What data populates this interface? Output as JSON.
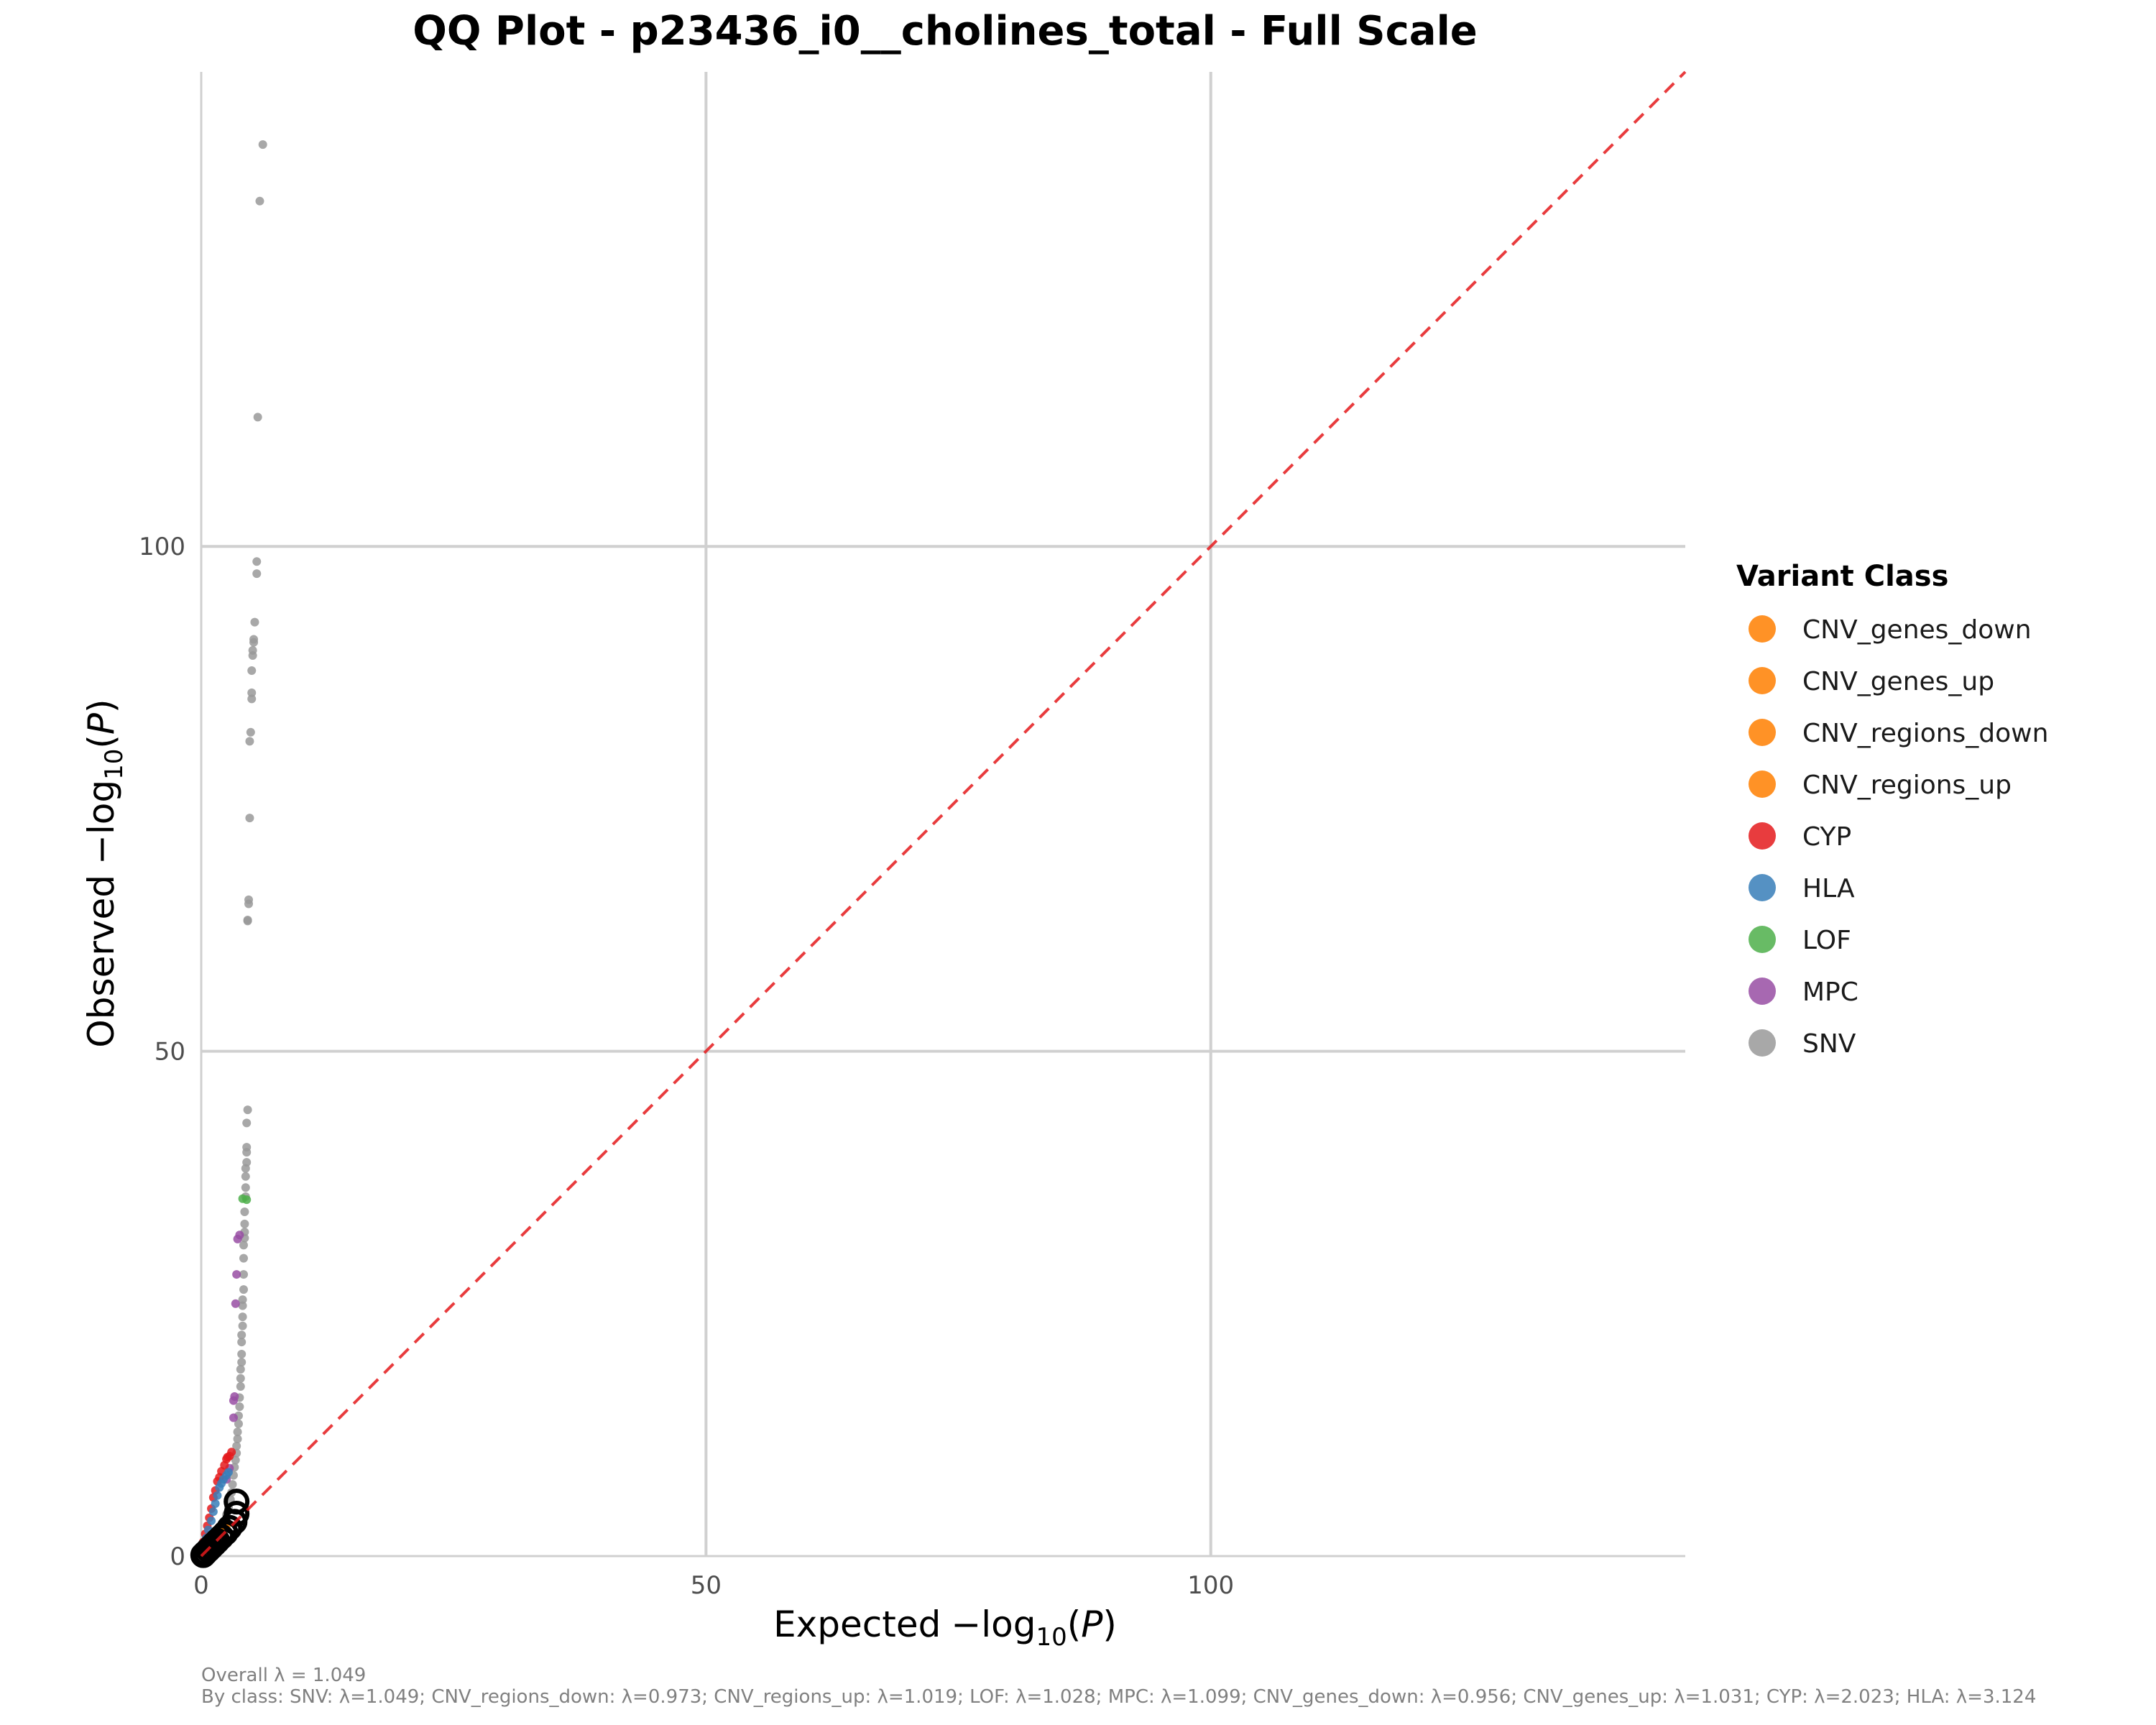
{
  "chart_data": {
    "type": "scatter",
    "title": "QQ Plot - p23436_i0__cholines_total - Full Scale",
    "xlabel_prefix": "Expected",
    "ylabel_prefix": "Observed",
    "xlim": [
      0,
      147
    ],
    "ylim": [
      0,
      147
    ],
    "x_ticks": [
      0,
      50,
      100
    ],
    "y_ticks": [
      0,
      50,
      100
    ],
    "grid": true,
    "reference_line": {
      "type": "diagonal",
      "color": "#e41a1c",
      "style": "dashed"
    },
    "legend": {
      "title": "Variant Class",
      "placement": "right",
      "entries": [
        {
          "name": "CNV_genes_down",
          "color": "#ff7f00"
        },
        {
          "name": "CNV_genes_up",
          "color": "#ff7f00"
        },
        {
          "name": "CNV_regions_down",
          "color": "#ff7f00"
        },
        {
          "name": "CNV_regions_up",
          "color": "#ff7f00"
        },
        {
          "name": "CYP",
          "color": "#e41a1c"
        },
        {
          "name": "HLA",
          "color": "#377eb8"
        },
        {
          "name": "LOF",
          "color": "#4daf4a"
        },
        {
          "name": "MPC",
          "color": "#984ea3"
        },
        {
          "name": "SNV",
          "color": "#999999"
        }
      ]
    },
    "series": [
      {
        "class": "SNV",
        "color": "#999999",
        "points": [
          [
            6.1,
            139.8
          ],
          [
            5.8,
            134.2
          ],
          [
            5.6,
            112.8
          ],
          [
            5.5,
            98.5
          ],
          [
            5.5,
            97.3
          ],
          [
            5.3,
            92.5
          ],
          [
            5.2,
            90.8
          ],
          [
            5.2,
            90.5
          ],
          [
            5.1,
            89.7
          ],
          [
            5.1,
            89.2
          ],
          [
            5.0,
            87.7
          ],
          [
            5.0,
            85.5
          ],
          [
            5.0,
            84.9
          ],
          [
            4.9,
            81.6
          ],
          [
            4.8,
            80.7
          ],
          [
            4.8,
            73.1
          ],
          [
            4.7,
            65.0
          ],
          [
            4.7,
            64.6
          ],
          [
            4.6,
            63.0
          ],
          [
            4.6,
            62.9
          ],
          [
            4.6,
            44.2
          ],
          [
            4.5,
            42.9
          ],
          [
            4.5,
            40.5
          ],
          [
            4.5,
            40.0
          ],
          [
            4.5,
            39.0
          ],
          [
            4.4,
            38.4
          ],
          [
            4.4,
            37.6
          ],
          [
            4.4,
            36.5
          ],
          [
            4.4,
            35.6
          ],
          [
            4.3,
            34.1
          ],
          [
            4.3,
            32.9
          ],
          [
            4.3,
            32.1
          ],
          [
            4.3,
            31.5
          ],
          [
            4.2,
            30.8
          ],
          [
            4.2,
            29.5
          ],
          [
            4.2,
            27.9
          ],
          [
            4.2,
            26.4
          ],
          [
            4.1,
            25.4
          ],
          [
            4.1,
            24.8
          ],
          [
            4.1,
            23.7
          ],
          [
            4.1,
            22.8
          ],
          [
            4.0,
            21.9
          ],
          [
            4.0,
            21.2
          ],
          [
            4.0,
            20.0
          ],
          [
            4.0,
            19.2
          ],
          [
            3.9,
            18.5
          ],
          [
            3.9,
            17.6
          ],
          [
            3.9,
            16.8
          ],
          [
            3.8,
            15.7
          ],
          [
            3.8,
            14.8
          ],
          [
            3.7,
            13.9
          ],
          [
            3.7,
            13.1
          ],
          [
            3.6,
            12.3
          ],
          [
            3.6,
            11.6
          ],
          [
            3.5,
            10.9
          ],
          [
            3.5,
            10.2
          ],
          [
            3.4,
            9.5
          ],
          [
            3.3,
            8.8
          ],
          [
            3.2,
            8.0
          ],
          [
            3.1,
            7.1
          ],
          [
            3.0,
            6.3
          ],
          [
            2.9,
            5.6
          ],
          [
            2.7,
            4.8
          ],
          [
            2.5,
            4.1
          ],
          [
            2.3,
            3.4
          ],
          [
            2.0,
            2.8
          ],
          [
            1.7,
            2.2
          ],
          [
            1.4,
            1.7
          ],
          [
            1.1,
            1.3
          ],
          [
            0.8,
            0.9
          ],
          [
            0.5,
            0.6
          ],
          [
            0.3,
            0.35
          ],
          [
            0.1,
            0.12
          ]
        ]
      },
      {
        "class": "LOF",
        "color": "#4daf4a",
        "points": [
          [
            4.1,
            35.4
          ],
          [
            4.5,
            35.3
          ]
        ]
      },
      {
        "class": "MPC",
        "color": "#984ea3",
        "points": [
          [
            3.8,
            31.8
          ],
          [
            3.6,
            31.4
          ],
          [
            3.5,
            27.9
          ],
          [
            3.4,
            25.0
          ],
          [
            3.3,
            15.8
          ],
          [
            3.2,
            15.4
          ],
          [
            3.2,
            13.7
          ],
          [
            2.8,
            8.7
          ],
          [
            2.5,
            7.6
          ]
        ]
      },
      {
        "class": "CYP",
        "color": "#e41a1c",
        "points": [
          [
            3.0,
            10.3
          ],
          [
            2.8,
            9.9
          ],
          [
            2.6,
            9.8
          ],
          [
            2.5,
            9.6
          ],
          [
            2.3,
            9.0
          ],
          [
            2.0,
            8.4
          ],
          [
            1.8,
            7.8
          ],
          [
            1.6,
            7.4
          ],
          [
            1.4,
            6.5
          ],
          [
            1.2,
            5.8
          ],
          [
            1.0,
            4.7
          ],
          [
            0.8,
            3.8
          ],
          [
            0.6,
            3.0
          ],
          [
            0.4,
            2.2
          ],
          [
            0.2,
            1.4
          ],
          [
            0.05,
            0.6
          ]
        ]
      },
      {
        "class": "HLA",
        "color": "#377eb8",
        "points": [
          [
            2.7,
            8.3
          ],
          [
            2.5,
            8.0
          ],
          [
            2.2,
            7.6
          ],
          [
            2.0,
            7.2
          ],
          [
            1.8,
            6.8
          ],
          [
            1.6,
            6.0
          ],
          [
            1.4,
            5.2
          ],
          [
            1.2,
            4.4
          ],
          [
            1.0,
            3.5
          ],
          [
            0.7,
            2.6
          ],
          [
            0.5,
            1.8
          ],
          [
            0.3,
            1.1
          ],
          [
            0.1,
            0.5
          ]
        ]
      },
      {
        "class": "CNV_regions_down",
        "color": "#ff7f00",
        "points": [
          [
            2.6,
            3.2
          ],
          [
            2.3,
            2.9
          ],
          [
            2.0,
            2.5
          ],
          [
            1.6,
            2.0
          ],
          [
            1.2,
            1.5
          ],
          [
            0.9,
            1.1
          ],
          [
            0.6,
            0.7
          ],
          [
            0.3,
            0.35
          ]
        ]
      }
    ],
    "highlighted_points": [
      [
        3.5,
        5.4
      ],
      [
        3.5,
        4.2
      ],
      [
        3.3,
        3.4
      ],
      [
        2.8,
        2.8
      ],
      [
        2.4,
        2.3
      ],
      [
        2.0,
        1.9
      ],
      [
        1.6,
        1.5
      ],
      [
        1.3,
        1.2
      ],
      [
        1.0,
        0.9
      ],
      [
        0.7,
        0.6
      ],
      [
        0.4,
        0.3
      ],
      [
        0.2,
        0.1
      ]
    ]
  },
  "caption": {
    "overall": "Overall λ = 1.049",
    "by_class": "By class: SNV: λ=1.049; CNV_regions_down: λ=0.973; CNV_regions_up: λ=1.019; LOF: λ=1.028; MPC: λ=1.099; CNV_genes_down: λ=0.956; CNV_genes_up: λ=1.031; CYP: λ=2.023; HLA: λ=3.124"
  }
}
